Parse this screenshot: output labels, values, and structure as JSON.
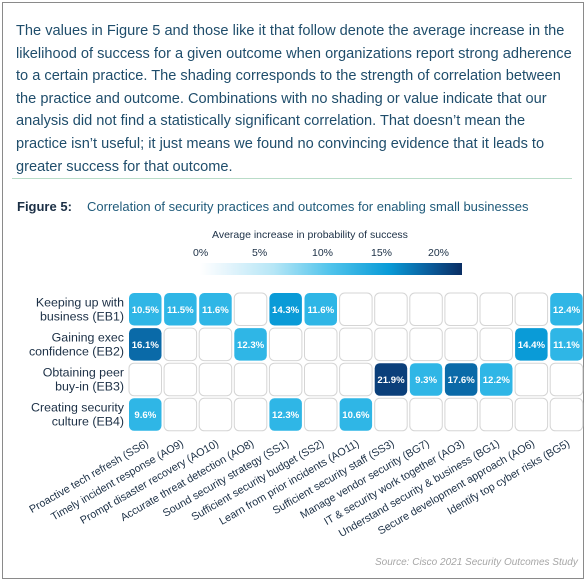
{
  "intro_text": "The values in Figure 5 and those like it that follow denote the average increase in the likelihood of success for a given outcome when organizations report strong adherence to a certain practice. The shading corresponds to the strength of correlation between the practice and outcome. Combinations with no shading or value indicate that our analysis did not find a statistically significant correlation. That doesn’t mean the practice isn’t useful; it just means we found no convincing evidence that it leads to greater success for that outcome.",
  "figure": {
    "label": "Figure 5:",
    "title": "Correlation of security practices and outcomes for enabling small businesses"
  },
  "legend": {
    "title": "Average increase in probability of success",
    "ticks": [
      "0%",
      "5%",
      "10%",
      "15%",
      "20%"
    ]
  },
  "source": "Source: Cisco 2021 Security Outcomes Study",
  "colors": {
    "text_dark": "#1b2f45",
    "intro_text": "#1f4d6b",
    "cell_empty_border": "#d5d5d5",
    "light_cell": "#2fb6e6",
    "mid_cell": "#0a9bd7",
    "dark_cell": "#0a6aa8",
    "darkest_cell": "#0b3f7a"
  },
  "chart_data": {
    "type": "heatmap",
    "title": "Correlation of security practices and outcomes for enabling small businesses",
    "legend_title": "Average increase in probability of success",
    "value_unit": "%",
    "scale_range": [
      0,
      22
    ],
    "rows": [
      [
        "Keeping up with",
        "business (EB1)"
      ],
      [
        "Gaining exec",
        "confidence (EB2)"
      ],
      [
        "Obtaining peer",
        "buy-in (EB3)"
      ],
      [
        "Creating security",
        "culture (EB4)"
      ]
    ],
    "columns": [
      "Proactive tech refresh (SS6)",
      "Timely incident response (AO9)",
      "Prompt disaster recovery (AO10)",
      "Accurate threat detection (AO8)",
      "Sound security strategy (SS1)",
      "Sufficient security budget (SS2)",
      "Learn from prior incidents (AO11)",
      "Sufficient security staff (SS3)",
      "Manage vendor security (BG7)",
      "IT & security work together (AO3)",
      "Understand security & business (BG1)",
      "Secure development approach (AO6)",
      "Identify top cyber risks (BG5)"
    ],
    "values": [
      [
        10.5,
        11.5,
        11.6,
        null,
        14.3,
        11.6,
        null,
        null,
        null,
        null,
        null,
        null,
        12.4
      ],
      [
        16.1,
        null,
        null,
        12.3,
        null,
        null,
        null,
        null,
        null,
        null,
        null,
        14.4,
        11.1
      ],
      [
        null,
        null,
        null,
        null,
        null,
        null,
        null,
        21.9,
        9.3,
        17.6,
        12.2,
        null,
        null
      ],
      [
        9.6,
        null,
        null,
        null,
        12.3,
        null,
        10.6,
        null,
        null,
        null,
        null,
        null,
        null
      ]
    ],
    "labels": [
      [
        "10.5%",
        "11.5%",
        "11.6%",
        "",
        "14.3%",
        "11.6%",
        "",
        "",
        "",
        "",
        "",
        "",
        "12.4%"
      ],
      [
        "16.1%",
        "",
        "",
        "12.3%",
        "",
        "",
        "",
        "",
        "",
        "",
        "",
        "14.4%",
        "11.1%"
      ],
      [
        "",
        "",
        "",
        "",
        "",
        "",
        "",
        "21.9%",
        "9.3%",
        "17.6%",
        "12.2%",
        "",
        ""
      ],
      [
        "9.6%",
        "",
        "",
        "",
        "12.3%",
        "",
        "10.6%",
        "",
        "",
        "",
        "",
        "",
        ""
      ]
    ],
    "legend_ticks": [
      "0%",
      "5%",
      "10%",
      "15%",
      "20%"
    ],
    "grid": true
  }
}
